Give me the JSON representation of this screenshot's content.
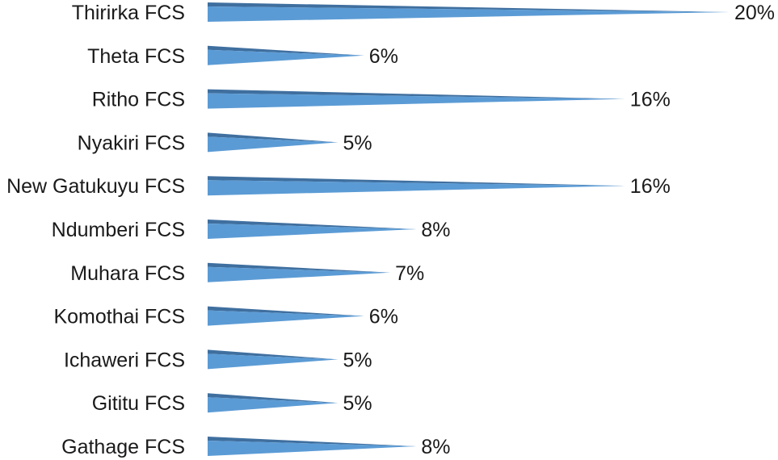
{
  "chart_data": {
    "type": "bar",
    "orientation": "horizontal",
    "bar_style": "3d-cone",
    "categories": [
      "Thirirka FCS",
      "Theta FCS",
      "Ritho FCS",
      "Nyakiri FCS",
      "New Gatukuyu FCS",
      "Ndumberi FCS",
      "Muhara FCS",
      "Komothai FCS",
      "Ichaweri FCS",
      "Gititu FCS",
      "Gathage FCS"
    ],
    "values": [
      20,
      6,
      16,
      5,
      16,
      8,
      7,
      6,
      5,
      5,
      8
    ],
    "value_labels": [
      "20%",
      "6%",
      "16%",
      "5%",
      "16%",
      "8%",
      "7%",
      "6%",
      "5%",
      "5%",
      "8%"
    ],
    "value_unit": "%",
    "xlim": [
      0,
      20
    ],
    "grid": false,
    "legend": "none",
    "colors": {
      "bar_front": "#5b9bd5",
      "bar_top": "#3f6f9f",
      "text": "#1a1a1a"
    }
  }
}
